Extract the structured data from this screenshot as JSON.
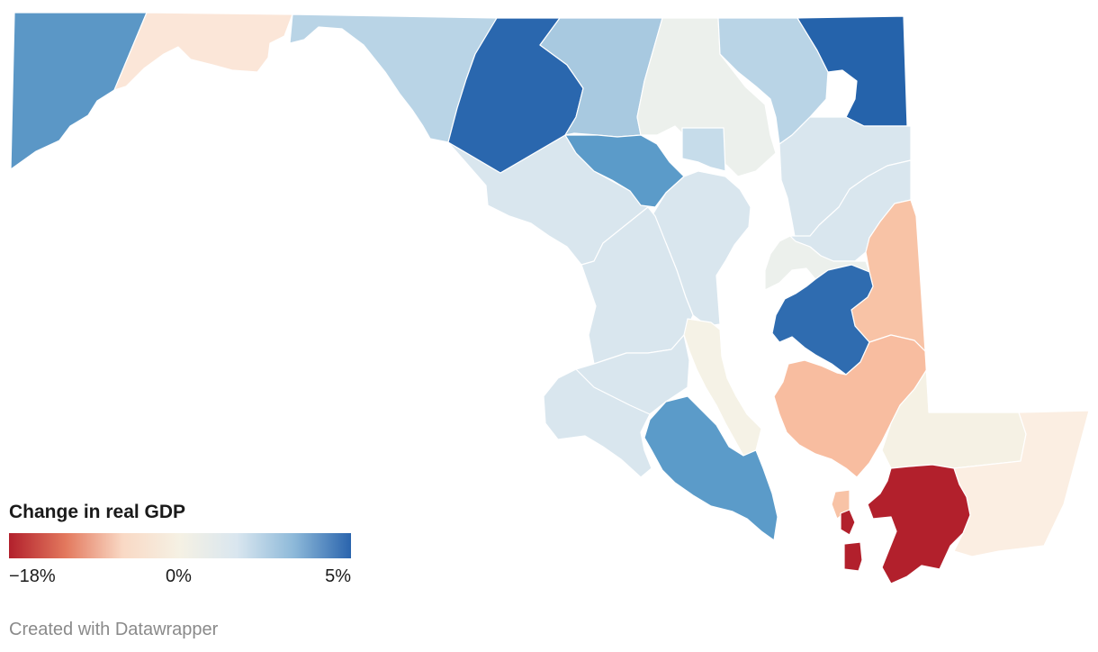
{
  "legend": {
    "title": "Change in real GDP",
    "min_label": "−18%",
    "mid_label": "0%",
    "max_label": "5%",
    "min_value": -18,
    "mid_value": 0,
    "max_value": 5,
    "scale_colors": [
      "#b2202c",
      "#e3795e",
      "#f9d9c5",
      "#f5f1e4",
      "#d9e6ef",
      "#8db9d9",
      "#2a64ad"
    ]
  },
  "credit": "Created with Datawrapper",
  "counties": [
    {
      "id": "garrett",
      "fill": "#5b97c6"
    },
    {
      "id": "allegany",
      "fill": "#fbe6d8"
    },
    {
      "id": "washington",
      "fill": "#b9d4e6"
    },
    {
      "id": "frederick-upper",
      "fill": "#b9d4e6"
    },
    {
      "id": "carroll",
      "fill": "#2a67ae"
    },
    {
      "id": "baltimore-north",
      "fill": "#a8c9e0"
    },
    {
      "id": "harford",
      "fill": "#ecf0ec"
    },
    {
      "id": "cecil-west",
      "fill": "#b9d4e6"
    },
    {
      "id": "cecil",
      "fill": "#2563ab"
    },
    {
      "id": "frederick",
      "fill": "#d9e6ee"
    },
    {
      "id": "howard",
      "fill": "#5b9bc9"
    },
    {
      "id": "baltimore-city",
      "fill": "#c6dcea"
    },
    {
      "id": "baltimore",
      "fill": "#d9e6ee"
    },
    {
      "id": "anne-arundel",
      "fill": "#d9e6ee"
    },
    {
      "id": "montgomery",
      "fill": "#d9e6ee"
    },
    {
      "id": "prince-georges",
      "fill": "#d9e6ee"
    },
    {
      "id": "kent",
      "fill": "#d9e6ee"
    },
    {
      "id": "queen-annes",
      "fill": "#ecf0ec"
    },
    {
      "id": "caroline",
      "fill": "#f8c3a6"
    },
    {
      "id": "talbot",
      "fill": "#2f6cb0"
    },
    {
      "id": "calvert",
      "fill": "#f5f2e6"
    },
    {
      "id": "charles",
      "fill": "#d9e6ee"
    },
    {
      "id": "st-marys",
      "fill": "#5b9bc9"
    },
    {
      "id": "dorchester",
      "fill": "#f8bda0"
    },
    {
      "id": "dorchester-island",
      "fill": "#f8c3a6"
    },
    {
      "id": "wicomico",
      "fill": "#f5f1e4"
    },
    {
      "id": "worcester",
      "fill": "#fbeee2"
    },
    {
      "id": "somerset",
      "fill": "#b2202c"
    },
    {
      "id": "smith-island-1",
      "fill": "#b2202c"
    },
    {
      "id": "smith-island-2",
      "fill": "#b2202c"
    }
  ]
}
